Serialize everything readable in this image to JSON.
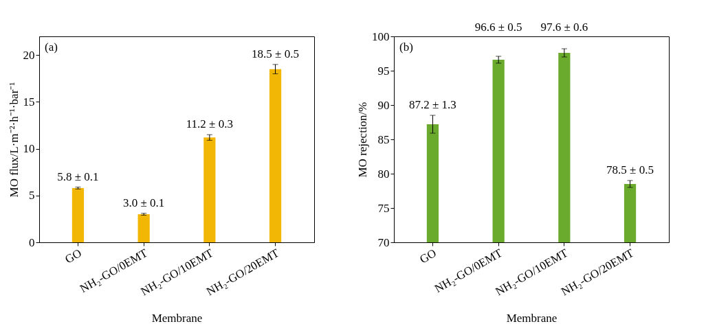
{
  "chart_data": [
    {
      "type": "bar",
      "categories": [
        "GO",
        "NH₂-GO/0EMT",
        "NH₂-GO/10EMT",
        "NH₂-GO/20EMT"
      ],
      "values": [
        5.8,
        3.0,
        11.2,
        18.5
      ],
      "errors": [
        0.1,
        0.1,
        0.3,
        0.5
      ],
      "value_labels": [
        "5.8 ± 0.1",
        "3.0 ± 0.1",
        "11.2 ± 0.3",
        "18.5 ± 0.5"
      ],
      "color": "#f2b705",
      "xlabel": "Membrane",
      "ylabel": "MO flux/L·m⁻²·h⁻¹·bar⁻¹",
      "ylim": [
        0,
        22
      ],
      "yticks": [
        0,
        5,
        10,
        15,
        20
      ],
      "annotations": [
        "(a)"
      ],
      "grid": false
    },
    {
      "type": "bar",
      "categories": [
        "GO",
        "NH₂-GO/0EMT",
        "NH₂-GO/10EMT",
        "NH₂-GO/20EMT"
      ],
      "values": [
        87.2,
        96.6,
        97.6,
        78.5
      ],
      "errors": [
        1.3,
        0.5,
        0.6,
        0.5
      ],
      "value_labels": [
        "87.2 ± 1.3",
        "96.6 ± 0.5",
        "97.6 ± 0.6",
        "78.5 ± 0.5"
      ],
      "color": "#6aab2e",
      "xlabel": "Membrane",
      "ylabel": "MO rejection/%",
      "ylim": [
        70,
        100
      ],
      "yticks": [
        70,
        75,
        80,
        85,
        90,
        95,
        100
      ],
      "annotations": [
        "(b)"
      ],
      "grid": false
    }
  ]
}
